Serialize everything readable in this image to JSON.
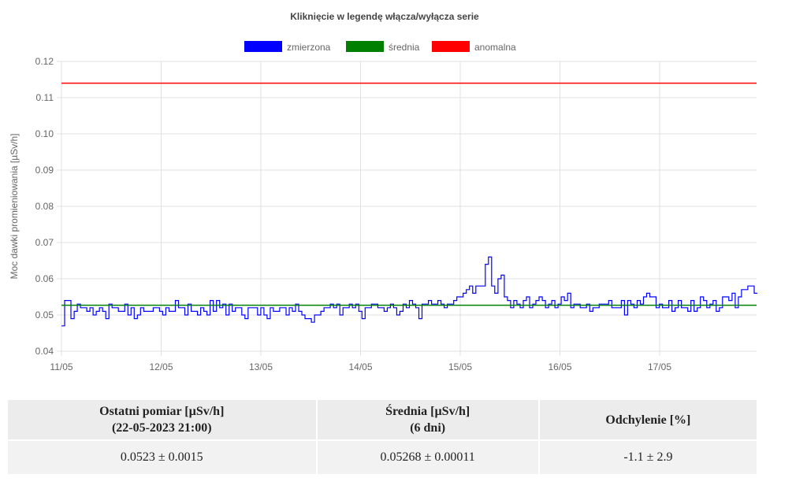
{
  "chart_data": {
    "type": "line",
    "title": "Kliknięcie w legendę włącza/wyłącza serie",
    "ylabel": "Moc dawki promieniowania [µSv/h]",
    "xlabel": "",
    "ylim": [
      0.04,
      0.12
    ],
    "y_ticks": [
      "0.04",
      "0.05",
      "0.06",
      "0.07",
      "0.08",
      "0.09",
      "0.10",
      "0.11",
      "0.12"
    ],
    "x_ticks": [
      "11/05",
      "12/05",
      "13/05",
      "14/05",
      "15/05",
      "16/05",
      "17/05"
    ],
    "x_unit": "days from 11/05 00:00",
    "grid": true,
    "legend_position": "top-center",
    "series": [
      {
        "name": "zmierzona",
        "color": "#0000ff",
        "step": true,
        "values": [
          0.047,
          0.054,
          0.054,
          0.049,
          0.051,
          0.053,
          0.052,
          0.052,
          0.051,
          0.052,
          0.05,
          0.051,
          0.052,
          0.051,
          0.049,
          0.053,
          0.052,
          0.052,
          0.051,
          0.051,
          0.053,
          0.05,
          0.052,
          0.049,
          0.05,
          0.052,
          0.051,
          0.051,
          0.051,
          0.052,
          0.052,
          0.051,
          0.05,
          0.052,
          0.051,
          0.051,
          0.054,
          0.052,
          0.052,
          0.05,
          0.053,
          0.051,
          0.051,
          0.05,
          0.052,
          0.051,
          0.05,
          0.054,
          0.051,
          0.054,
          0.052,
          0.053,
          0.05,
          0.053,
          0.051,
          0.052,
          0.052,
          0.05,
          0.049,
          0.052,
          0.052,
          0.052,
          0.05,
          0.052,
          0.05,
          0.049,
          0.052,
          0.051,
          0.051,
          0.052,
          0.052,
          0.05,
          0.052,
          0.051,
          0.053,
          0.051,
          0.05,
          0.049,
          0.049,
          0.048,
          0.05,
          0.05,
          0.051,
          0.052,
          0.052,
          0.053,
          0.052,
          0.053,
          0.05,
          0.052,
          0.052,
          0.053,
          0.052,
          0.053,
          0.051,
          0.049,
          0.052,
          0.052,
          0.053,
          0.053,
          0.052,
          0.052,
          0.051,
          0.052,
          0.053,
          0.052,
          0.05,
          0.051,
          0.053,
          0.052,
          0.054,
          0.053,
          0.052,
          0.049,
          0.053,
          0.053,
          0.054,
          0.053,
          0.053,
          0.054,
          0.053,
          0.052,
          0.053,
          0.053,
          0.054,
          0.055,
          0.055,
          0.056,
          0.057,
          0.058,
          0.056,
          0.058,
          0.058,
          0.058,
          0.064,
          0.066,
          0.058,
          0.056,
          0.06,
          0.061,
          0.055,
          0.054,
          0.052,
          0.054,
          0.053,
          0.052,
          0.054,
          0.055,
          0.052,
          0.053,
          0.054,
          0.055,
          0.054,
          0.052,
          0.053,
          0.054,
          0.052,
          0.053,
          0.055,
          0.054,
          0.056,
          0.052,
          0.053,
          0.053,
          0.052,
          0.052,
          0.053,
          0.051,
          0.052,
          0.052,
          0.053,
          0.053,
          0.053,
          0.054,
          0.052,
          0.052,
          0.052,
          0.054,
          0.05,
          0.054,
          0.053,
          0.052,
          0.054,
          0.053,
          0.055,
          0.056,
          0.055,
          0.055,
          0.052,
          0.053,
          0.052,
          0.052,
          0.054,
          0.051,
          0.052,
          0.054,
          0.052,
          0.052,
          0.051,
          0.054,
          0.051,
          0.052,
          0.055,
          0.054,
          0.052,
          0.053,
          0.054,
          0.051,
          0.052,
          0.055,
          0.055,
          0.054,
          0.056,
          0.052,
          0.055,
          0.057,
          0.057,
          0.058,
          0.058,
          0.056
        ]
      },
      {
        "name": "średnia",
        "color": "#008000",
        "values": [
          0.05268,
          0.05268
        ]
      },
      {
        "name": "anomalna",
        "color": "#ff0000",
        "values": [
          0.114,
          0.114
        ]
      }
    ],
    "x_range": [
      0,
      6.98
    ]
  },
  "stats_table": {
    "headers": [
      [
        "Ostatni pomiar [µSv/h]",
        "(22-05-2023 21:00)"
      ],
      [
        "Średnia [µSv/h]",
        "(6 dni)"
      ],
      [
        "Odchylenie [%]"
      ]
    ],
    "values": [
      "0.0523 ± 0.0015",
      "0.05268 ± 0.00011",
      "-1.1 ± 2.9"
    ]
  }
}
